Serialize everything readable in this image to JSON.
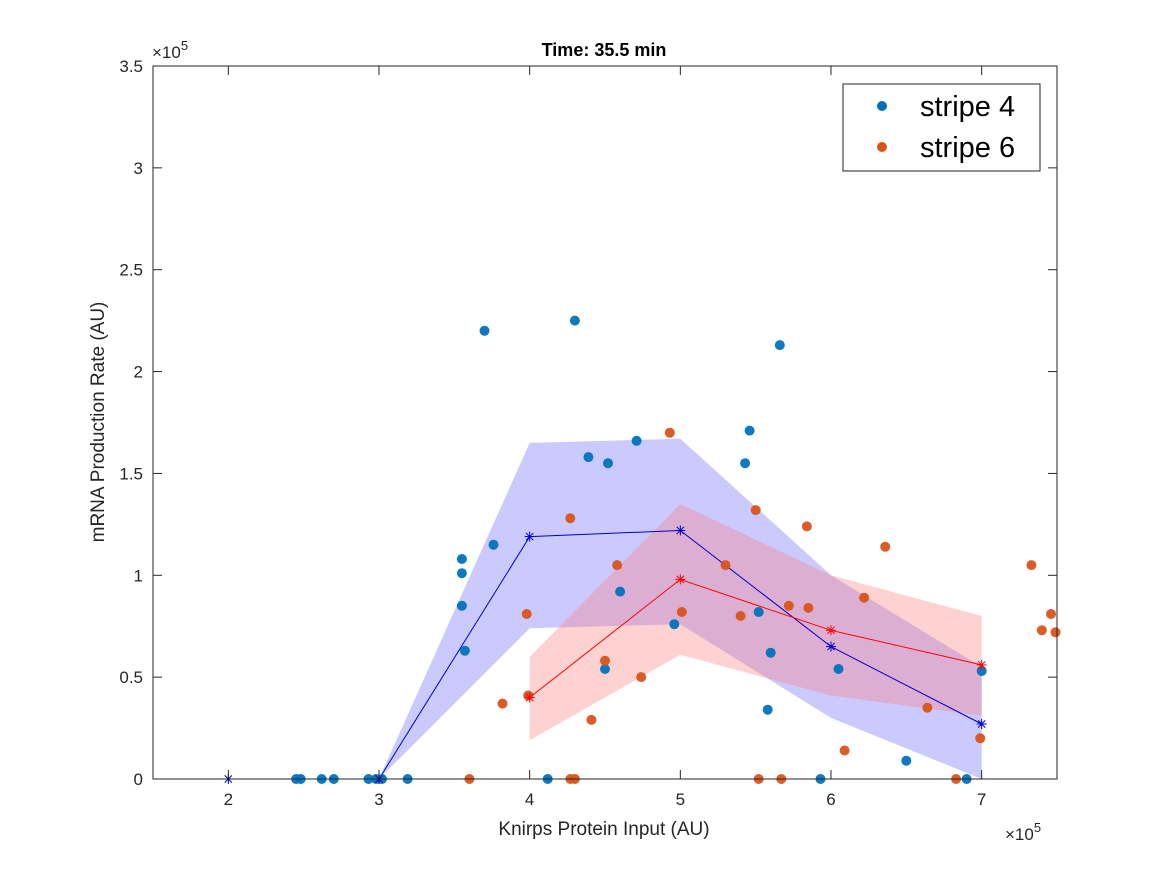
{
  "chart_data": {
    "type": "scatter",
    "title": "Time: 35.5 min",
    "xlabel": "Knirps Protein Input (AU)",
    "ylabel": "mRNA Production Rate (AU)",
    "x_exponent_base": "×10",
    "x_exponent_power": "5",
    "y_exponent_base": "×10",
    "y_exponent_power": "5",
    "xlim": [
      150000,
      750000
    ],
    "ylim": [
      0,
      350000
    ],
    "x_ticks": [
      200000,
      300000,
      400000,
      500000,
      600000,
      700000
    ],
    "x_tick_labels": [
      "2",
      "3",
      "4",
      "5",
      "6",
      "7"
    ],
    "y_ticks": [
      0,
      50000,
      100000,
      150000,
      200000,
      250000,
      300000,
      350000
    ],
    "y_tick_labels": [
      "0",
      "0.5",
      "1",
      "1.5",
      "2",
      "2.5",
      "3",
      "3.5"
    ],
    "grid": false,
    "legend_position": "top-right",
    "series": [
      {
        "name": "stripe 4",
        "kind": "scatter",
        "color": "#0072BD",
        "points": [
          [
            245000,
            0
          ],
          [
            248000,
            0
          ],
          [
            262000,
            0
          ],
          [
            270000,
            0
          ],
          [
            293000,
            0
          ],
          [
            298000,
            0
          ],
          [
            302000,
            0
          ],
          [
            319000,
            0
          ],
          [
            355000,
            108000
          ],
          [
            355000,
            101000
          ],
          [
            355000,
            85000
          ],
          [
            357000,
            63000
          ],
          [
            370000,
            220000
          ],
          [
            376000,
            115000
          ],
          [
            430000,
            225000
          ],
          [
            439000,
            158000
          ],
          [
            452000,
            155000
          ],
          [
            460000,
            92000
          ],
          [
            471000,
            166000
          ],
          [
            450000,
            54000
          ],
          [
            412000,
            0
          ],
          [
            496000,
            76000
          ],
          [
            543000,
            155000
          ],
          [
            546000,
            171000
          ],
          [
            552000,
            82000
          ],
          [
            558000,
            34000
          ],
          [
            566000,
            213000
          ],
          [
            560000,
            62000
          ],
          [
            593000,
            0
          ],
          [
            605000,
            54000
          ],
          [
            650000,
            9000
          ],
          [
            690000,
            0
          ],
          [
            700000,
            53000
          ]
        ]
      },
      {
        "name": "stripe 6",
        "kind": "scatter",
        "color": "#D95319",
        "points": [
          [
            360000,
            0
          ],
          [
            382000,
            37000
          ],
          [
            398000,
            81000
          ],
          [
            399000,
            41000
          ],
          [
            427000,
            128000
          ],
          [
            441000,
            29000
          ],
          [
            450000,
            58000
          ],
          [
            458000,
            105000
          ],
          [
            474000,
            50000
          ],
          [
            493000,
            170000
          ],
          [
            501000,
            82000
          ],
          [
            430000,
            0
          ],
          [
            427000,
            0
          ],
          [
            530000,
            105000
          ],
          [
            540000,
            80000
          ],
          [
            550000,
            132000
          ],
          [
            552000,
            0
          ],
          [
            567000,
            0
          ],
          [
            572000,
            85000
          ],
          [
            584000,
            124000
          ],
          [
            585000,
            84000
          ],
          [
            609000,
            14000
          ],
          [
            622000,
            89000
          ],
          [
            636000,
            114000
          ],
          [
            664000,
            35000
          ],
          [
            683000,
            0
          ],
          [
            699000,
            20000
          ],
          [
            733000,
            105000
          ],
          [
            740000,
            73000
          ],
          [
            746000,
            81000
          ],
          [
            749000,
            72000
          ]
        ]
      },
      {
        "kind": "binned-mean",
        "color": "#0000CC",
        "band_color": "#6666ff",
        "x": [
          200000,
          300000,
          400000,
          500000,
          600000,
          700000
        ],
        "y": [
          0,
          0,
          119000,
          122000,
          65000,
          27000
        ],
        "band_upper": [
          0,
          0,
          165000,
          167000,
          100000,
          55000
        ],
        "band_lower": [
          0,
          0,
          74000,
          76000,
          30000,
          0
        ]
      },
      {
        "kind": "binned-mean",
        "color": "#FF0000",
        "band_color": "#ff7f7f",
        "x": [
          400000,
          500000,
          600000,
          700000
        ],
        "y": [
          40000,
          98000,
          73000,
          56000
        ],
        "band_upper": [
          60000,
          135000,
          100000,
          80000
        ],
        "band_lower": [
          19000,
          61000,
          41000,
          31000
        ]
      }
    ]
  }
}
